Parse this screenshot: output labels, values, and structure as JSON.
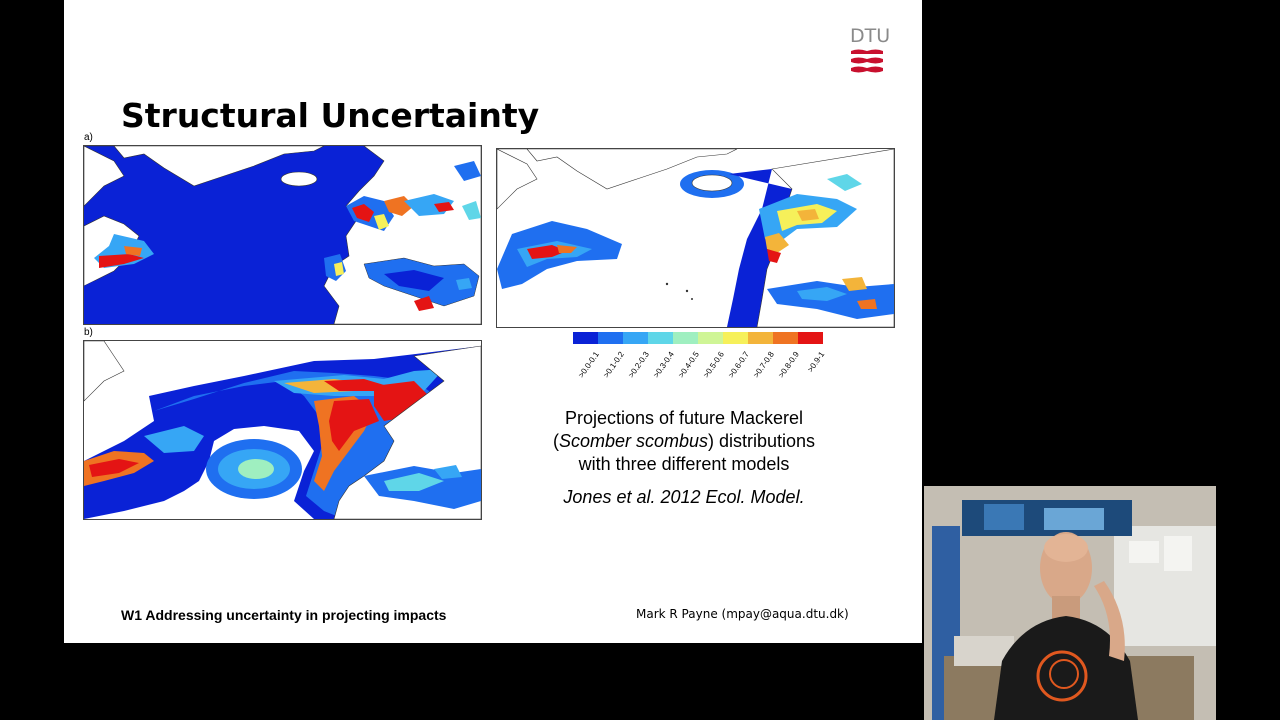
{
  "slide": {
    "title": "Structural Uncertainty",
    "logo_text": "DTU",
    "panel_labels": {
      "a": "a)",
      "b": "b)"
    },
    "caption_lines": {
      "line1": "Projections of future Mackerel",
      "line2_prefix": "(",
      "line2_italic": "Scomber scombus",
      "line2_suffix": ") distributions",
      "line3": "with three different models"
    },
    "citation": "Jones et al. 2012 Ecol. Model.",
    "footer_left": "W1 Addressing uncertainty in projecting impacts",
    "footer_right": "Mark R Payne (mpay@aqua.dtu.dk)"
  },
  "legend": {
    "colors": [
      "#0a22d6",
      "#1f6ff0",
      "#36a6f5",
      "#5fd6e8",
      "#9fefc0",
      "#cff596",
      "#f6f05a",
      "#f3b43a",
      "#ef7322",
      "#e41414"
    ],
    "labels": [
      ">0.0-0.1",
      ">0.1-0.2",
      ">0.2-0.3",
      ">0.3-0.4",
      ">0.4-0.5",
      ">0.5-0.6",
      ">0.6-0.7",
      ">0.7-0.8",
      ">0.8-0.9",
      ">0.9-1"
    ]
  },
  "webcam": {
    "description_icon": "presenter-video-feed"
  }
}
